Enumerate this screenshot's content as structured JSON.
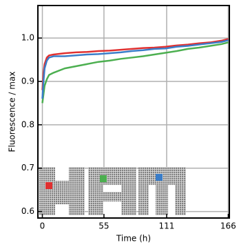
{
  "chart_data": {
    "type": "line",
    "xlabel": "Time (h)",
    "ylabel": "Fluorescence / max",
    "x": [
      0,
      1,
      2,
      4,
      6,
      10,
      20,
      30,
      40,
      50,
      60,
      70,
      80,
      90,
      100,
      110,
      120,
      130,
      140,
      150,
      160,
      166
    ],
    "series": [
      {
        "name": "green",
        "color": "#4caf50",
        "values": [
          0.85,
          0.87,
          0.89,
          0.905,
          0.915,
          0.92,
          0.93,
          0.935,
          0.94,
          0.945,
          0.948,
          0.952,
          0.955,
          0.958,
          0.962,
          0.966,
          0.97,
          0.975,
          0.978,
          0.982,
          0.986,
          0.99
        ]
      },
      {
        "name": "red",
        "color": "#e03030",
        "values": [
          0.88,
          0.92,
          0.94,
          0.955,
          0.96,
          0.962,
          0.965,
          0.967,
          0.968,
          0.97,
          0.971,
          0.973,
          0.975,
          0.977,
          0.978,
          0.98,
          0.983,
          0.985,
          0.988,
          0.99,
          0.994,
          0.998
        ]
      },
      {
        "name": "blue",
        "color": "#3a7dc9",
        "values": [
          0.86,
          0.9,
          0.93,
          0.948,
          0.955,
          0.958,
          0.958,
          0.96,
          0.962,
          0.963,
          0.965,
          0.967,
          0.97,
          0.972,
          0.975,
          0.976,
          0.98,
          0.982,
          0.985,
          0.988,
          0.991,
          0.995
        ]
      }
    ],
    "xlim": [
      -4,
      167
    ],
    "xticks": [
      0,
      55,
      111,
      166
    ],
    "ylim": [
      0.585,
      1.075
    ],
    "yticks": [
      0.6,
      0.7,
      0.8,
      0.9,
      {
        "value": 1,
        "label": "1.0"
      }
    ],
    "grid": true
  }
}
